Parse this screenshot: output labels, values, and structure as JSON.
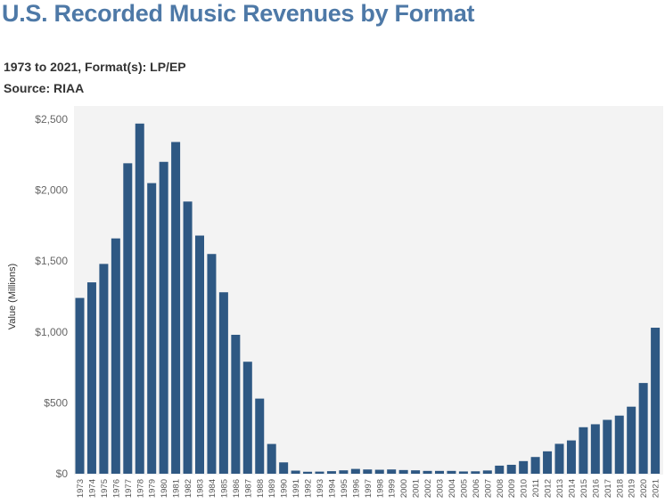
{
  "title": "U.S. Recorded Music Revenues by Format",
  "subtitle": "1973 to 2021, Format(s): LP/EP",
  "source": "Source: RIAA",
  "colors": {
    "bar": "#2e5883",
    "plot_bg": "#f3f3f3",
    "title": "#4e79a7"
  },
  "chart_data": {
    "type": "bar",
    "title": "U.S. Recorded Music Revenues by Format",
    "ylabel": "Value (Millions)",
    "xlabel": "",
    "ylim": [
      0,
      2500
    ],
    "yticks": [
      0,
      500,
      1000,
      1500,
      2000,
      2500
    ],
    "ytick_labels": [
      "$0",
      "$500",
      "$1,000",
      "$1,500",
      "$2,000",
      "$2,500"
    ],
    "grid": false,
    "categories": [
      "1973",
      "1974",
      "1975",
      "1976",
      "1977",
      "1978",
      "1979",
      "1980",
      "1981",
      "1982",
      "1983",
      "1984",
      "1985",
      "1986",
      "1987",
      "1988",
      "1989",
      "1990",
      "1991",
      "1992",
      "1993",
      "1994",
      "1995",
      "1996",
      "1997",
      "1998",
      "1999",
      "2000",
      "2001",
      "2002",
      "2003",
      "2004",
      "2005",
      "2006",
      "2007",
      "2008",
      "2009",
      "2010",
      "2011",
      "2012",
      "2013",
      "2014",
      "2015",
      "2016",
      "2017",
      "2018",
      "2019",
      "2020",
      "2021"
    ],
    "values": [
      1240,
      1350,
      1480,
      1660,
      2190,
      2470,
      2050,
      2200,
      2340,
      1920,
      1680,
      1550,
      1280,
      980,
      790,
      530,
      210,
      80,
      22,
      14,
      15,
      18,
      24,
      34,
      30,
      28,
      30,
      26,
      24,
      20,
      20,
      20,
      16,
      17,
      23,
      57,
      63,
      89,
      118,
      158,
      211,
      235,
      328,
      349,
      380,
      410,
      473,
      640,
      1030
    ]
  }
}
